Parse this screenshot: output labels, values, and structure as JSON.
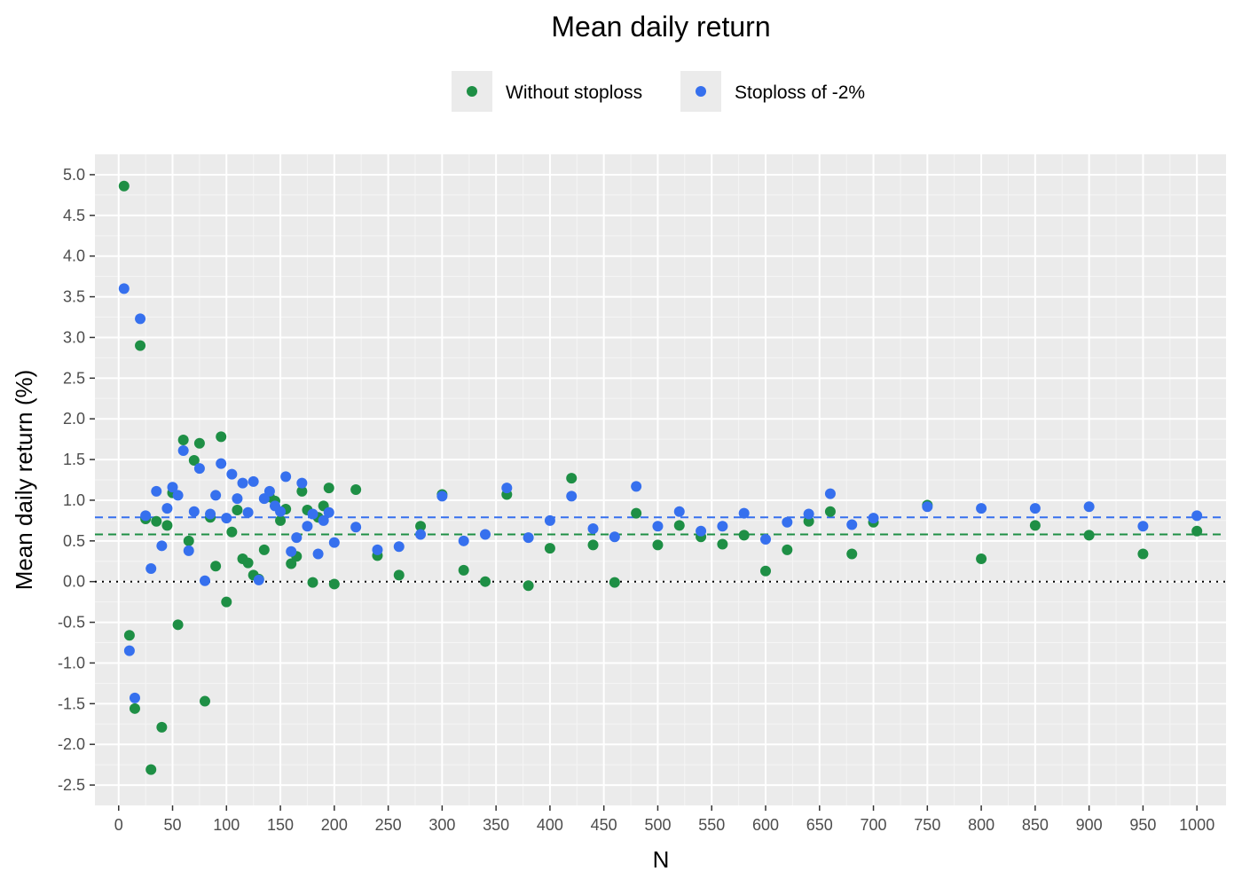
{
  "chart_data": {
    "type": "scatter",
    "title": "Mean daily return",
    "xlabel": "N",
    "ylabel": "Mean daily return (%)",
    "xlim": [
      -22,
      1027
    ],
    "ylim": [
      -2.75,
      5.25
    ],
    "x_ticks": [
      0,
      50,
      100,
      150,
      200,
      250,
      300,
      350,
      400,
      450,
      500,
      550,
      600,
      650,
      700,
      750,
      800,
      850,
      900,
      950,
      1000
    ],
    "y_ticks": [
      -2.5,
      -2.0,
      -1.5,
      -1.0,
      -0.5,
      0.0,
      0.5,
      1.0,
      1.5,
      2.0,
      2.5,
      3.0,
      3.5,
      4.0,
      4.5,
      5.0
    ],
    "grid": true,
    "legend_position": "top",
    "reference_lines": [
      {
        "y": 0.0,
        "style": "dotted",
        "color": "#000000"
      },
      {
        "y": 0.58,
        "style": "dashed",
        "color": "#1e8f45"
      },
      {
        "y": 0.79,
        "style": "dashed",
        "color": "#3670ee"
      }
    ],
    "series": [
      {
        "name": "Without stoploss",
        "color": "#1e8f45",
        "points": [
          [
            5,
            4.86
          ],
          [
            10,
            -0.66
          ],
          [
            15,
            -1.56
          ],
          [
            20,
            2.9
          ],
          [
            25,
            0.77
          ],
          [
            30,
            -2.31
          ],
          [
            35,
            0.74
          ],
          [
            40,
            -1.79
          ],
          [
            45,
            0.69
          ],
          [
            50,
            1.09
          ],
          [
            55,
            -0.53
          ],
          [
            60,
            1.74
          ],
          [
            65,
            0.5
          ],
          [
            70,
            1.49
          ],
          [
            75,
            1.7
          ],
          [
            80,
            -1.47
          ],
          [
            85,
            0.79
          ],
          [
            90,
            0.19
          ],
          [
            95,
            1.78
          ],
          [
            100,
            -0.25
          ],
          [
            105,
            0.61
          ],
          [
            110,
            0.88
          ],
          [
            115,
            0.28
          ],
          [
            120,
            0.23
          ],
          [
            125,
            0.08
          ],
          [
            130,
            0.03
          ],
          [
            135,
            0.39
          ],
          [
            140,
            1.04
          ],
          [
            145,
            0.99
          ],
          [
            150,
            0.75
          ],
          [
            155,
            0.89
          ],
          [
            160,
            0.22
          ],
          [
            165,
            0.31
          ],
          [
            170,
            1.11
          ],
          [
            175,
            0.88
          ],
          [
            180,
            -0.01
          ],
          [
            185,
            0.79
          ],
          [
            190,
            0.93
          ],
          [
            195,
            1.15
          ],
          [
            200,
            -0.03
          ],
          [
            220,
            1.13
          ],
          [
            240,
            0.32
          ],
          [
            260,
            0.08
          ],
          [
            280,
            0.68
          ],
          [
            300,
            1.07
          ],
          [
            320,
            0.14
          ],
          [
            340,
            0.0
          ],
          [
            360,
            1.07
          ],
          [
            380,
            -0.05
          ],
          [
            400,
            0.41
          ],
          [
            420,
            1.27
          ],
          [
            440,
            0.45
          ],
          [
            460,
            -0.01
          ],
          [
            480,
            0.84
          ],
          [
            500,
            0.45
          ],
          [
            520,
            0.69
          ],
          [
            540,
            0.55
          ],
          [
            560,
            0.46
          ],
          [
            580,
            0.57
          ],
          [
            600,
            0.13
          ],
          [
            620,
            0.39
          ],
          [
            640,
            0.74
          ],
          [
            660,
            0.86
          ],
          [
            680,
            0.34
          ],
          [
            700,
            0.73
          ],
          [
            750,
            0.94
          ],
          [
            800,
            0.28
          ],
          [
            850,
            0.69
          ],
          [
            900,
            0.57
          ],
          [
            950,
            0.34
          ],
          [
            1000,
            0.62
          ]
        ]
      },
      {
        "name": "Stoploss of -2%",
        "color": "#3670ee",
        "points": [
          [
            5,
            3.6
          ],
          [
            10,
            -0.85
          ],
          [
            15,
            -1.43
          ],
          [
            20,
            3.23
          ],
          [
            25,
            0.81
          ],
          [
            30,
            0.16
          ],
          [
            35,
            1.11
          ],
          [
            40,
            0.44
          ],
          [
            45,
            0.9
          ],
          [
            50,
            1.16
          ],
          [
            55,
            1.06
          ],
          [
            60,
            1.61
          ],
          [
            65,
            0.38
          ],
          [
            70,
            0.86
          ],
          [
            75,
            1.39
          ],
          [
            80,
            0.01
          ],
          [
            85,
            0.83
          ],
          [
            90,
            1.06
          ],
          [
            95,
            1.45
          ],
          [
            100,
            0.78
          ],
          [
            105,
            1.32
          ],
          [
            110,
            1.02
          ],
          [
            115,
            1.21
          ],
          [
            120,
            0.85
          ],
          [
            125,
            1.23
          ],
          [
            130,
            0.02
          ],
          [
            135,
            1.02
          ],
          [
            140,
            1.11
          ],
          [
            145,
            0.93
          ],
          [
            150,
            0.86
          ],
          [
            155,
            1.29
          ],
          [
            160,
            0.37
          ],
          [
            165,
            0.54
          ],
          [
            170,
            1.21
          ],
          [
            175,
            0.68
          ],
          [
            180,
            0.83
          ],
          [
            185,
            0.34
          ],
          [
            190,
            0.75
          ],
          [
            195,
            0.85
          ],
          [
            200,
            0.48
          ],
          [
            220,
            0.67
          ],
          [
            240,
            0.39
          ],
          [
            260,
            0.43
          ],
          [
            280,
            0.58
          ],
          [
            300,
            1.05
          ],
          [
            320,
            0.5
          ],
          [
            340,
            0.58
          ],
          [
            360,
            1.15
          ],
          [
            380,
            0.54
          ],
          [
            400,
            0.75
          ],
          [
            420,
            1.05
          ],
          [
            440,
            0.65
          ],
          [
            460,
            0.55
          ],
          [
            480,
            1.17
          ],
          [
            500,
            0.68
          ],
          [
            520,
            0.86
          ],
          [
            540,
            0.62
          ],
          [
            560,
            0.68
          ],
          [
            580,
            0.84
          ],
          [
            600,
            0.52
          ],
          [
            620,
            0.73
          ],
          [
            640,
            0.83
          ],
          [
            660,
            1.08
          ],
          [
            680,
            0.7
          ],
          [
            700,
            0.78
          ],
          [
            750,
            0.92
          ],
          [
            800,
            0.9
          ],
          [
            850,
            0.9
          ],
          [
            900,
            0.92
          ],
          [
            950,
            0.68
          ],
          [
            1000,
            0.81
          ]
        ]
      }
    ]
  }
}
